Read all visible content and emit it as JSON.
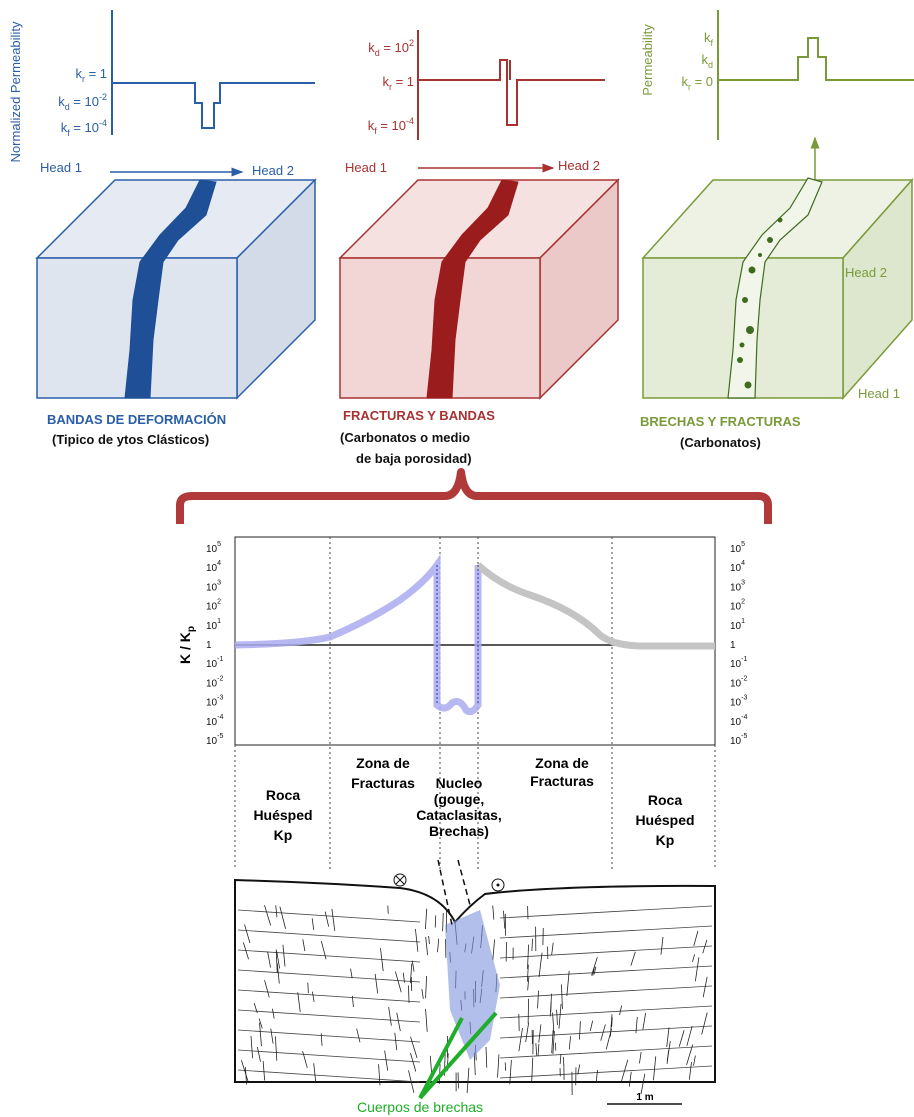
{
  "panels": [
    {
      "axis_label": "Normalized Permeability",
      "levels": [
        {
          "base": "k",
          "sub": "r",
          "rest": " = 1"
        },
        {
          "base": "k",
          "sub": "d",
          "rest": " = 10",
          "sup": "-2"
        },
        {
          "base": "k",
          "sub": "f",
          "rest": " = 10",
          "sup": "-4"
        }
      ],
      "head_1": "Head 1",
      "head_2": "Head 2",
      "title": "BANDAS DE DEFORMACIÓN",
      "subtitle": [
        "(Tipico de ytos Clásticos)"
      ]
    },
    {
      "levels": [
        {
          "base": "k",
          "sub": "d",
          "rest": " = 10",
          "sup": "2"
        },
        {
          "base": "k",
          "sub": "r",
          "rest": " = 1"
        },
        {
          "base": "k",
          "sub": "f",
          "rest": " = 10",
          "sup": "-4"
        }
      ],
      "head_1": "Head 1",
      "head_2": "Head 2",
      "title": "FRACTURAS Y BANDAS",
      "subtitle": [
        "(Carbonatos o medio",
        "de baja porosidad)"
      ]
    },
    {
      "axis_label": "Permeability",
      "levels": [
        {
          "base": "k",
          "sub": "f"
        },
        {
          "base": "k",
          "sub": "d"
        },
        {
          "base": "k",
          "sub": "r",
          "rest": " = 0"
        }
      ],
      "head_2": "Head 2",
      "head_1": "Head 1",
      "title": "BRECHAS Y FRACTURAS",
      "subtitle": [
        "(Carbonatos)"
      ]
    }
  ],
  "profile": {
    "y_label": {
      "base": "K / K",
      "sub": "p"
    },
    "ticks": [
      {
        "base": "10",
        "sup": "5"
      },
      {
        "base": "10",
        "sup": "4"
      },
      {
        "base": "10",
        "sup": "3"
      },
      {
        "base": "10",
        "sup": "2"
      },
      {
        "base": "10",
        "sup": "1"
      },
      {
        "base": "1"
      },
      {
        "base": "10",
        "sup": "-1"
      },
      {
        "base": "10",
        "sup": "-2"
      },
      {
        "base": "10",
        "sup": "-3"
      },
      {
        "base": "10",
        "sup": "-4"
      },
      {
        "base": "10",
        "sup": "-5"
      }
    ],
    "zones": [
      {
        "lines": [
          "Roca",
          "Huésped",
          "Kp"
        ]
      },
      {
        "lines": [
          "Zona de",
          "Fracturas"
        ]
      },
      {
        "lines": [
          "Nucleo",
          "(gouge,",
          "Cataclasitas,",
          "Brechas)"
        ]
      },
      {
        "lines": [
          "Zona de",
          "Fracturas"
        ]
      },
      {
        "lines": [
          "Roca",
          "Huésped",
          "Kp"
        ]
      }
    ]
  },
  "section": {
    "annotation": "Cuerpos de brechas",
    "scale": "1 m"
  }
}
